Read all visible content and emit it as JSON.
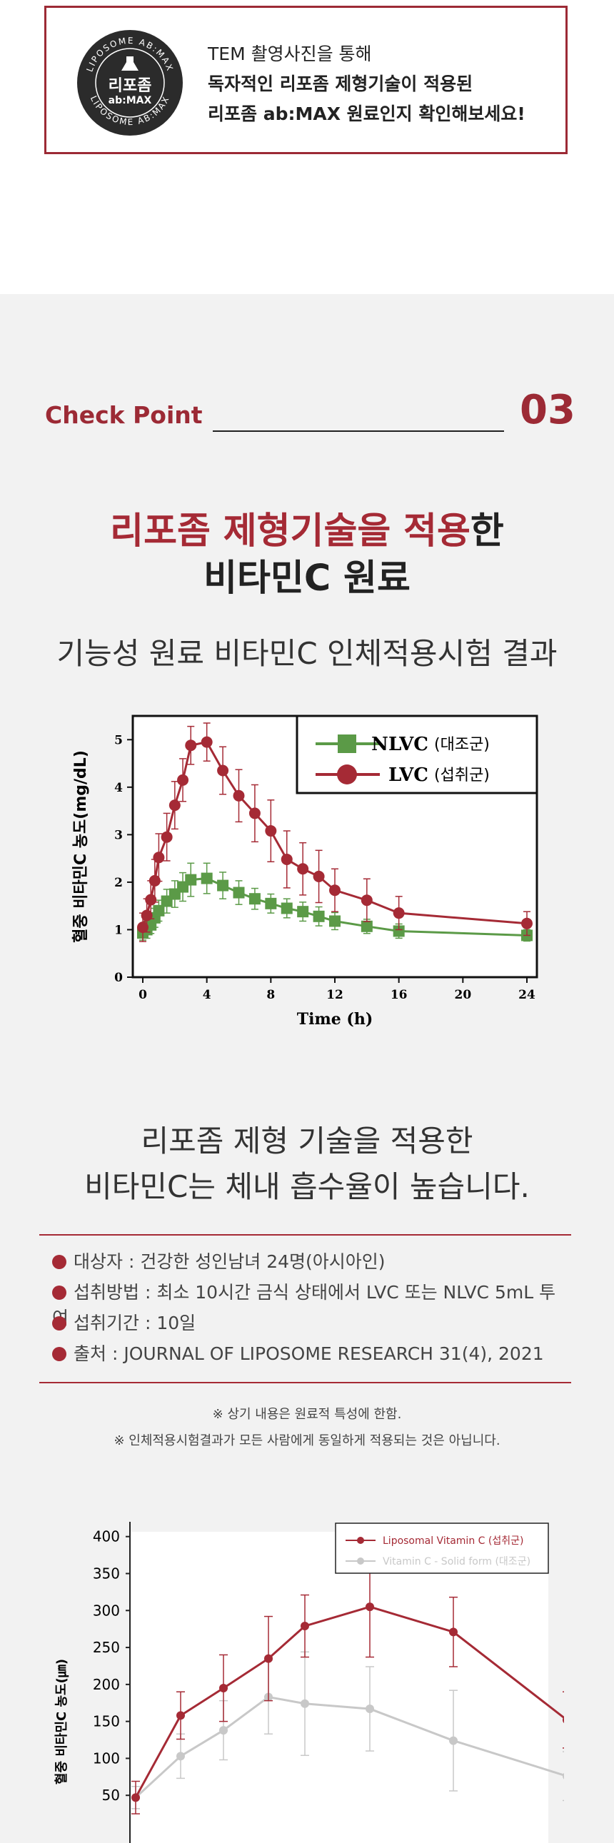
{
  "notice": {
    "badge": {
      "ring_text_top": "LIPOSOME AB:MAX",
      "ring_text_bottom": "LIPOSOME AB:MAX",
      "title": "리포좀",
      "subtitle": "ab:MAX"
    },
    "line1": "TEM 촬영사진을 통해",
    "line2": "독자적인 리포좀 제형기술이 적용된",
    "line3": "리포좀 ab:MAX 원료인지 확인해보세요!"
  },
  "check_point": {
    "label": "Check Point",
    "number": "03"
  },
  "headline": {
    "line1_red": "리포좀 제형기술을 적용",
    "line1_black": "한",
    "line2": "비타민C 원료"
  },
  "subheadline": "기능성 원료 비타민C 인체적용시험 결과",
  "summary": {
    "line1": "리포좀 제형 기술을 적용한",
    "line2": "비타민C는 체내 흡수율이 높습니다."
  },
  "info": [
    "대상자 : 건강한 성인남녀 24명(아시아인)",
    "섭취방법 : 최소 10시간 금식 상태에서 LVC 또는 NLVC 5mL 투여",
    "섭취기간 : 10일",
    "출처 : JOURNAL OF LIPOSOME RESEARCH 31(4), 2021"
  ],
  "notes": [
    "※ 상기 내용은 원료적 특성에 한함.",
    "※ 인체적용시험결과가 모든 사람에게 동일하게 적용되는 것은 아닙니다."
  ],
  "colors": {
    "red": "#a52a35",
    "green": "#5b9a47",
    "gray": "#c8c8c8"
  },
  "chart_data": [
    {
      "type": "line",
      "title": "",
      "xlabel": "Time (h)",
      "ylabel": "혈중 비타민C 농도(mg/dL)",
      "xlim": [
        0,
        24
      ],
      "ylim": [
        0,
        5.5
      ],
      "xticks": [
        0,
        4,
        8,
        12,
        16,
        20,
        24
      ],
      "yticks": [
        0,
        1,
        2,
        3,
        4,
        5
      ],
      "legend_position": "top-right",
      "series": [
        {
          "name": "NLVC",
          "name_suffix": "(대조군)",
          "marker": "square",
          "x": [
            0,
            0.25,
            0.5,
            0.75,
            1,
            1.5,
            2,
            2.5,
            3,
            4,
            5,
            6,
            7,
            8,
            9,
            10,
            11,
            12,
            14,
            16,
            24
          ],
          "values": [
            0.93,
            1.0,
            1.1,
            1.25,
            1.4,
            1.6,
            1.75,
            1.9,
            2.05,
            2.08,
            1.93,
            1.78,
            1.65,
            1.55,
            1.45,
            1.38,
            1.28,
            1.18,
            1.07,
            0.97,
            0.88
          ],
          "error": [
            0.15,
            0.18,
            0.18,
            0.2,
            0.22,
            0.25,
            0.28,
            0.3,
            0.35,
            0.32,
            0.28,
            0.25,
            0.22,
            0.2,
            0.2,
            0.2,
            0.2,
            0.18,
            0.15,
            0.15,
            0.12
          ]
        },
        {
          "name": "LVC",
          "name_suffix": "(섭취군)",
          "marker": "circle",
          "x": [
            0,
            0.25,
            0.5,
            0.75,
            1,
            1.5,
            2,
            2.5,
            3,
            4,
            5,
            6,
            7,
            8,
            9,
            10,
            11,
            12,
            14,
            16,
            24
          ],
          "values": [
            1.05,
            1.3,
            1.63,
            2.03,
            2.52,
            2.95,
            3.62,
            4.15,
            4.88,
            4.95,
            4.35,
            3.82,
            3.45,
            3.08,
            2.48,
            2.28,
            2.12,
            1.83,
            1.62,
            1.35,
            1.13
          ],
          "error": [
            0.3,
            0.35,
            0.4,
            0.45,
            0.5,
            0.5,
            0.5,
            0.45,
            0.4,
            0.4,
            0.5,
            0.55,
            0.6,
            0.65,
            0.6,
            0.55,
            0.55,
            0.45,
            0.45,
            0.35,
            0.25
          ]
        }
      ]
    },
    {
      "type": "line",
      "title": "",
      "xlabel": "",
      "ylabel": "혈중 비타민C 농도(㎛)",
      "ylim": [
        0,
        420
      ],
      "yticks": [
        50,
        100,
        150,
        200,
        250,
        300,
        350,
        400
      ],
      "legend_position": "top-right",
      "series": [
        {
          "name": "Liposomal Vitamin C (섭취군)",
          "x": [
            0,
            1,
            2,
            3,
            4,
            6,
            8,
            12
          ],
          "values": [
            47,
            158,
            195,
            235,
            279,
            305,
            271,
            152
          ],
          "error": [
            22,
            32,
            45,
            57,
            42,
            68,
            47,
            38
          ]
        },
        {
          "name": "Vitamin C - Solid form (대조군)",
          "x": [
            0,
            1,
            2,
            3,
            4,
            6,
            8,
            12
          ],
          "values": [
            47,
            103,
            138,
            183,
            174,
            167,
            124,
            76
          ],
          "error": [
            15,
            30,
            40,
            50,
            70,
            57,
            68,
            33
          ]
        }
      ]
    }
  ]
}
